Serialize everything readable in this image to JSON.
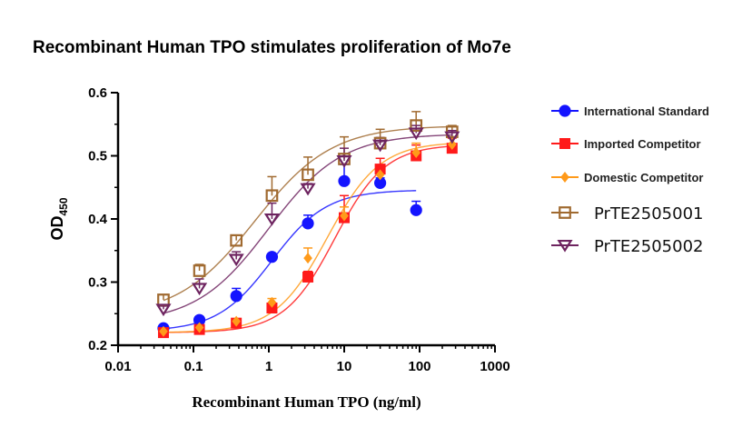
{
  "chart_data": {
    "type": "scatter",
    "title": "Recombinant Human TPO stimulates proliferation of Mo7e",
    "xlabel": "Recombinant Human TPO (ng/ml)",
    "ylabel": {
      "main": "OD",
      "sub": "450"
    },
    "xscale": "log",
    "xlim": [
      0.01,
      1000
    ],
    "ylim": [
      0.2,
      0.6
    ],
    "xticks": [
      {
        "value": 0.01,
        "label": "0.01"
      },
      {
        "value": 0.1,
        "label": "0.1"
      },
      {
        "value": 1,
        "label": "1"
      },
      {
        "value": 10,
        "label": "10"
      },
      {
        "value": 100,
        "label": "100"
      },
      {
        "value": 1000,
        "label": "1000"
      }
    ],
    "yticks": [
      {
        "value": 0.2,
        "label": "0.2"
      },
      {
        "value": 0.3,
        "label": "0.3"
      },
      {
        "value": 0.4,
        "label": "0.4"
      },
      {
        "value": 0.5,
        "label": "0.5"
      },
      {
        "value": 0.6,
        "label": "0.6"
      }
    ],
    "grid": false,
    "legend_position": "right",
    "series": [
      {
        "name": "International Standard",
        "color": "#1414ff",
        "marker": "circle",
        "x": [
          0.04,
          0.12,
          0.37,
          1.1,
          3.3,
          10,
          30,
          90
        ],
        "y": [
          0.227,
          0.24,
          0.278,
          0.34,
          0.393,
          0.46,
          0.457,
          0.414
        ],
        "err": [
          0.004,
          0.004,
          0.012,
          0.005,
          0.013,
          0.026,
          0.008,
          0.014
        ],
        "curve": {
          "bottom": 0.222,
          "top": 0.446,
          "ec50": 1.1,
          "hill": 1.2
        }
      },
      {
        "name": "Imported Competitor",
        "color": "#ff1a1a",
        "marker": "square",
        "x": [
          0.04,
          0.12,
          0.37,
          1.1,
          3.3,
          10,
          30,
          90,
          270
        ],
        "y": [
          0.22,
          0.225,
          0.235,
          0.259,
          0.308,
          0.402,
          0.479,
          0.5,
          0.512
        ],
        "err": [
          0.003,
          0.004,
          0.004,
          0.007,
          0.009,
          0.035,
          0.017,
          0.017,
          0.016
        ],
        "curve": {
          "bottom": 0.22,
          "top": 0.518,
          "ec50": 7.5,
          "hill": 1.3
        }
      },
      {
        "name": "Domestic Competitor",
        "color": "#ff9a1a",
        "marker": "diamond",
        "x": [
          0.04,
          0.12,
          0.37,
          1.1,
          3.3,
          10,
          30,
          90,
          270
        ],
        "y": [
          0.222,
          0.228,
          0.238,
          0.268,
          0.338,
          0.405,
          0.47,
          0.505,
          0.518
        ],
        "err": [
          0.003,
          0.003,
          0.004,
          0.006,
          0.016,
          0.014,
          0.012,
          0.015,
          0.012
        ],
        "curve": {
          "bottom": 0.22,
          "top": 0.522,
          "ec50": 6.0,
          "hill": 1.25
        }
      },
      {
        "name": "PrTE2505001",
        "color": "#a06a30",
        "marker": "open-square",
        "x": [
          0.04,
          0.12,
          0.37,
          1.1,
          3.3,
          10,
          30,
          90,
          270
        ],
        "y": [
          0.272,
          0.318,
          0.366,
          0.437,
          0.47,
          0.495,
          0.52,
          0.548,
          0.538
        ],
        "err": [
          0.008,
          0.01,
          0.008,
          0.03,
          0.028,
          0.035,
          0.022,
          0.022,
          0.01
        ],
        "curve": {
          "bottom": 0.245,
          "top": 0.548,
          "ec50": 0.65,
          "hill": 0.85
        }
      },
      {
        "name": "PrTE2505002",
        "color": "#6e2460",
        "marker": "open-triangle-down",
        "x": [
          0.04,
          0.12,
          0.37,
          1.1,
          3.3,
          10,
          30,
          90,
          270
        ],
        "y": [
          0.257,
          0.29,
          0.336,
          0.4,
          0.448,
          0.492,
          0.517,
          0.536,
          0.53
        ],
        "err": [
          0.005,
          0.015,
          0.012,
          0.025,
          0.008,
          0.02,
          0.012,
          0.012,
          0.01
        ],
        "curve": {
          "bottom": 0.235,
          "top": 0.535,
          "ec50": 1.0,
          "hill": 0.9
        }
      }
    ]
  }
}
